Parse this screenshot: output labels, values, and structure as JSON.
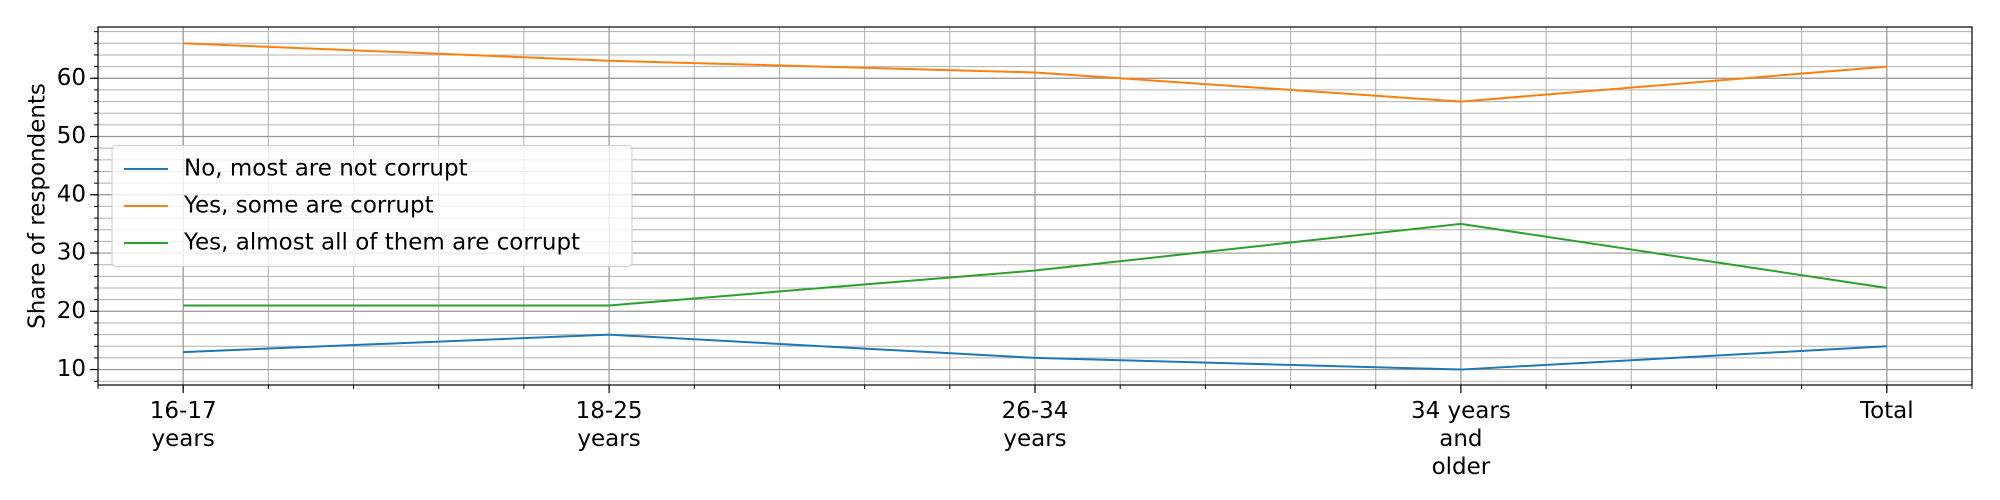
{
  "chart_data": {
    "type": "line",
    "ylabel": "Share of respondents",
    "categories": [
      "16-17\nyears",
      "18-25\nyears",
      "26-34\nyears",
      "34 years\nand\nolder",
      "Total"
    ],
    "series": [
      {
        "name": "No, most are not corrupt",
        "color": "#1f77b4",
        "values": [
          13,
          16,
          12,
          10,
          14
        ]
      },
      {
        "name": "Yes, some are corrupt",
        "color": "#ff7f0e",
        "values": [
          66,
          63,
          61,
          56,
          62
        ]
      },
      {
        "name": "Yes, almost all of them are corrupt",
        "color": "#2ca02c",
        "values": [
          21,
          21,
          27,
          35,
          24
        ]
      }
    ],
    "xlim": [
      -0.2,
      4.2
    ],
    "ylim": [
      7.35,
      68.8
    ],
    "yticks": [
      10,
      20,
      30,
      40,
      50,
      60
    ],
    "grid": true,
    "minor_grid": true,
    "legend": "center left"
  }
}
